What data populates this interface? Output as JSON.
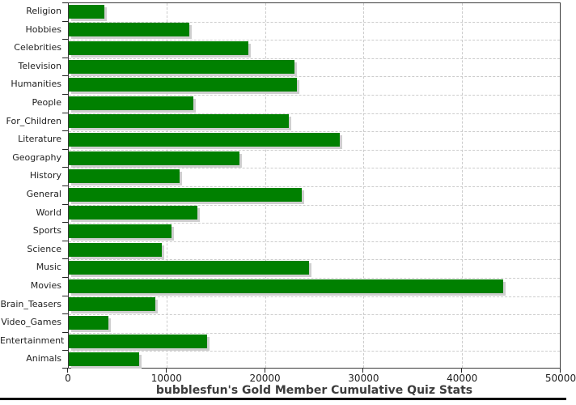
{
  "chart_data": {
    "type": "bar",
    "orientation": "horizontal",
    "title": "bubblesfun's Gold Member Cumulative Quiz Stats",
    "categories": [
      "Religion",
      "Hobbies",
      "Celebrities",
      "Television",
      "Humanities",
      "People",
      "For_Children",
      "Literature",
      "Geography",
      "History",
      "General",
      "World",
      "Sports",
      "Science",
      "Music",
      "Movies",
      "Brain_Teasers",
      "Video_Games",
      "Entertainment",
      "Animals"
    ],
    "values": [
      3600,
      12250,
      18250,
      23000,
      23200,
      12650,
      22400,
      27600,
      17400,
      11250,
      23700,
      13100,
      10450,
      9500,
      24500,
      44250,
      8800,
      4000,
      14050,
      7150
    ],
    "xlim": [
      0,
      50000
    ],
    "x_ticks": [
      0,
      10000,
      20000,
      30000,
      40000,
      50000
    ],
    "x_tick_labels": [
      "0",
      "10000",
      "20000",
      "30000",
      "40000",
      "50000"
    ],
    "grid": "dashed",
    "legend": "none",
    "bar_color": "#008000",
    "bar_shadow_color": "#cfcfcf",
    "grid_color": "#cccccc",
    "frame_color": "#3b3b3b"
  }
}
